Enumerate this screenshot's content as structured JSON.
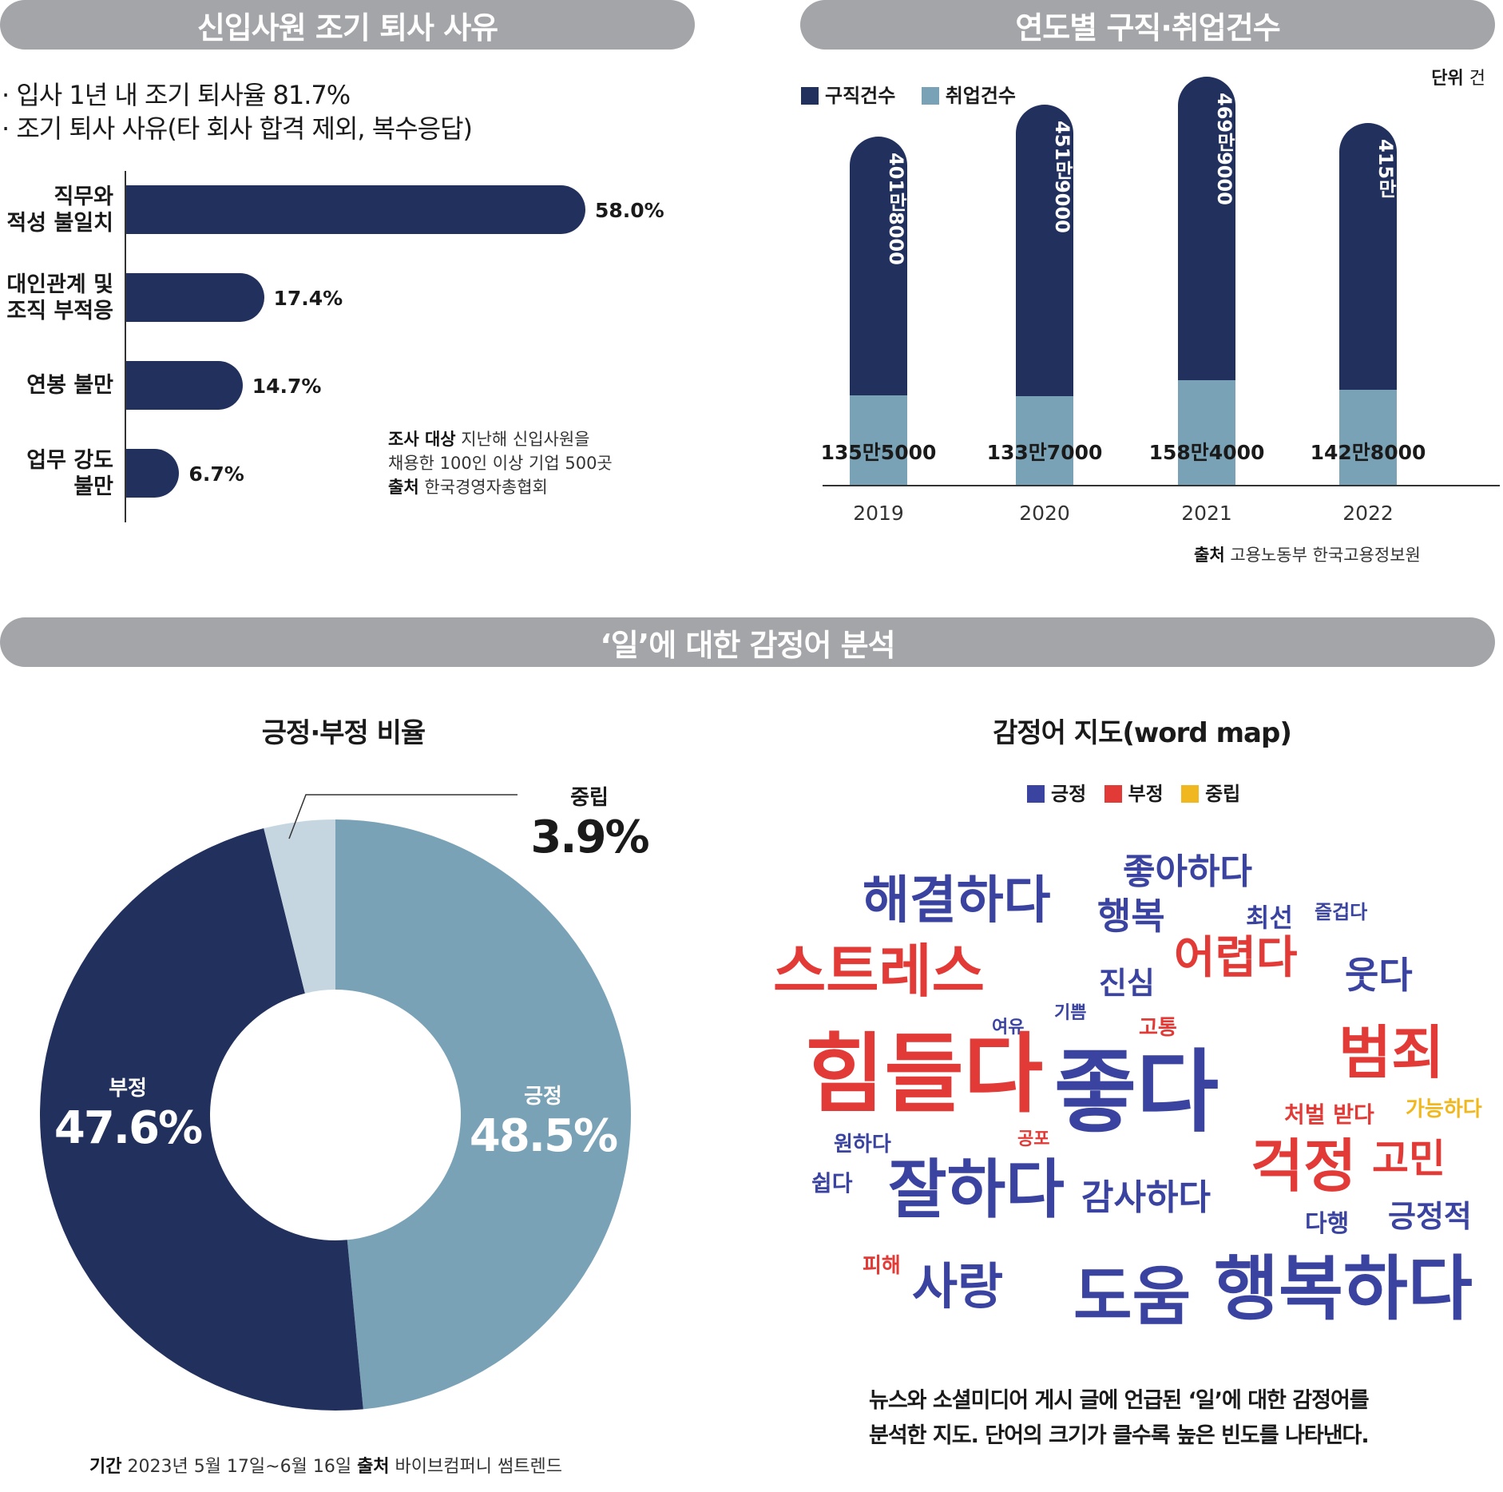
{
  "panels": {
    "left_title": "신입사원 조기 퇴사 사유",
    "right_title": "연도별 구직·취업건수",
    "bottom_title": "‘일’에 대한 감정어 분석"
  },
  "reasons": {
    "bullet1": "· 입사 1년 내 조기 퇴사율 81.7%",
    "bullet2": "· 조기 퇴사 사유(타 회사 합격 제외, 복수응답)",
    "note": {
      "l1_bold": "조사 대상",
      "l1": " 지난해 신입사원을",
      "l2": "채용한 100인 이상 기업 500곳",
      "l3_bold": "출처",
      "l3": " 한국경영자총협회"
    }
  },
  "jobs": {
    "legend": [
      "구직건수",
      "취업건수"
    ],
    "unit_label": "단위",
    "unit": " 건",
    "source_bold": "출처",
    "source": " 고용노동부 한국고용정보원"
  },
  "sentiment": {
    "donut_title": "긍정·부정 비율",
    "map_title": "감정어 지도(word map)",
    "map_legend": [
      "긍정",
      "부정",
      "중립"
    ],
    "caption1": "뉴스와 소셜미디어 게시 글에 언급된 ‘일’에 대한 감정어를",
    "caption2": "분석한 지도. 단어의 크기가 클수록 높은 빈도를 나타낸다.",
    "footer_bold1": "기간",
    "footer1": " 2023년 5월 17일~6월 16일  ",
    "footer_bold2": "출처",
    "footer2": " 바이브컴퍼니 썸트렌드",
    "words": [
      {
        "text": "해결하다",
        "type": "pos"
      },
      {
        "text": "좋아하다",
        "type": "pos"
      },
      {
        "text": "행복",
        "type": "pos"
      },
      {
        "text": "최선",
        "type": "pos"
      },
      {
        "text": "즐겁다",
        "type": "pos"
      },
      {
        "text": "스트레스",
        "type": "neg"
      },
      {
        "text": "진심",
        "type": "pos"
      },
      {
        "text": "어렵다",
        "type": "neg"
      },
      {
        "text": "웃다",
        "type": "pos"
      },
      {
        "text": "기쁨",
        "type": "pos"
      },
      {
        "text": "여유",
        "type": "pos"
      },
      {
        "text": "고통",
        "type": "neg"
      },
      {
        "text": "힘들다",
        "type": "neg"
      },
      {
        "text": "좋다",
        "type": "pos"
      },
      {
        "text": "범죄",
        "type": "neg"
      },
      {
        "text": "처벌 받다",
        "type": "neg"
      },
      {
        "text": "가능하다",
        "type": "neu"
      },
      {
        "text": "원하다",
        "type": "pos"
      },
      {
        "text": "공포",
        "type": "neg"
      },
      {
        "text": "쉽다",
        "type": "pos"
      },
      {
        "text": "잘하다",
        "type": "pos"
      },
      {
        "text": "감사하다",
        "type": "pos"
      },
      {
        "text": "걱정",
        "type": "neg"
      },
      {
        "text": "고민",
        "type": "neg"
      },
      {
        "text": "다행",
        "type": "pos"
      },
      {
        "text": "긍정적",
        "type": "pos"
      },
      {
        "text": "피해",
        "type": "neg"
      },
      {
        "text": "사랑",
        "type": "pos"
      },
      {
        "text": "도움",
        "type": "pos"
      },
      {
        "text": "행복하다",
        "type": "pos"
      }
    ]
  },
  "colors": {
    "navy": "#22305e",
    "steel": "#7aa2b7",
    "light": "#c6d6e1",
    "pos": "#3a43a0",
    "neg": "#e23a36",
    "neu": "#f0b81e"
  },
  "chart_data": [
    {
      "type": "bar",
      "orientation": "horizontal",
      "categories": [
        "직무와\n적성 불일치",
        "대인관계 및\n조직 부적응",
        "연봉 불만",
        "업무 강도\n불만"
      ],
      "values": [
        58.0,
        17.4,
        14.7,
        6.7
      ],
      "value_labels": [
        "58.0%",
        "17.4%",
        "14.7%",
        "6.7%"
      ]
    },
    {
      "type": "bar",
      "stacked": true,
      "categories": [
        "2019",
        "2020",
        "2021",
        "2022"
      ],
      "series": [
        {
          "name": "구직건수",
          "values": [
            4018000,
            4519000,
            4699000,
            4150000
          ],
          "labels": [
            "401만8000",
            "451만9000",
            "469만9000",
            "415만"
          ]
        },
        {
          "name": "취업건수",
          "values": [
            1355000,
            1337000,
            1584000,
            1428000
          ],
          "labels": [
            "135만5000",
            "133만7000",
            "158만4000",
            "142만8000"
          ]
        }
      ]
    },
    {
      "type": "pie",
      "donut": true,
      "categories": [
        "긍정",
        "부정",
        "중립"
      ],
      "values": [
        48.5,
        47.6,
        3.9
      ],
      "value_labels": [
        "48.5%",
        "47.6%",
        "3.9%"
      ]
    }
  ]
}
